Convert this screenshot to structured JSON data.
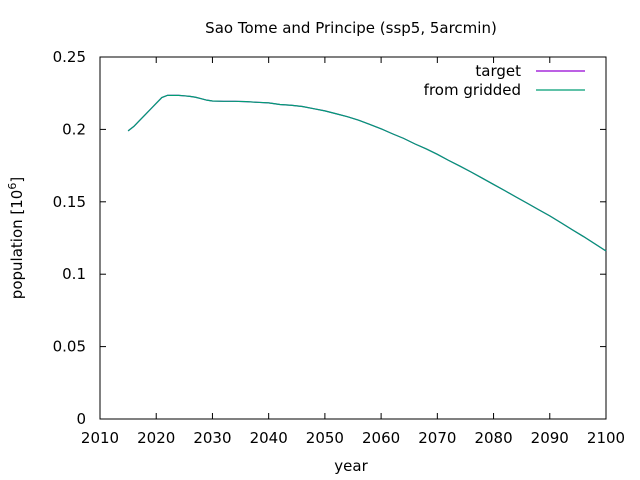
{
  "chart_data": {
    "type": "line",
    "title": "Sao Tome and Principe (ssp5, 5arcmin)",
    "xlabel": "year",
    "ylabel_base": "population [10",
    "ylabel_exp": "6",
    "ylabel_close": "]",
    "xlim": [
      2010,
      2100
    ],
    "ylim": [
      0,
      0.25
    ],
    "xticks": [
      "2010",
      "2020",
      "2030",
      "2040",
      "2050",
      "2060",
      "2070",
      "2080",
      "2090",
      "2100"
    ],
    "yticks": [
      "0",
      "0.05",
      "0.1",
      "0.15",
      "0.2",
      "0.25"
    ],
    "grid": false,
    "legend_position": "top-right",
    "series": [
      {
        "name": "target",
        "color": "#9400d3",
        "x": [
          2015,
          2016,
          2017,
          2018,
          2019,
          2020,
          2021,
          2022,
          2023,
          2024,
          2025,
          2026,
          2027,
          2028,
          2029,
          2030,
          2032,
          2034,
          2036,
          2038,
          2040,
          2042,
          2044,
          2046,
          2048,
          2050,
          2052,
          2054,
          2056,
          2058,
          2060,
          2062,
          2064,
          2066,
          2068,
          2070,
          2072,
          2074,
          2076,
          2078,
          2080,
          2082,
          2084,
          2086,
          2088,
          2090,
          2092,
          2094,
          2096,
          2098,
          2100
        ],
        "y": [
          0.199,
          0.202,
          0.206,
          0.21,
          0.214,
          0.218,
          0.222,
          0.2235,
          0.2235,
          0.2235,
          0.2232,
          0.2228,
          0.2222,
          0.2212,
          0.2202,
          0.2196,
          0.2194,
          0.2194,
          0.2192,
          0.2187,
          0.2183,
          0.2172,
          0.2167,
          0.2158,
          0.2143,
          0.2128,
          0.2108,
          0.2088,
          0.2064,
          0.2034,
          0.2004,
          0.197,
          0.1938,
          0.19,
          0.1866,
          0.1828,
          0.1786,
          0.1747,
          0.1706,
          0.1663,
          0.162,
          0.1577,
          0.1533,
          0.149,
          0.1446,
          0.1403,
          0.1355,
          0.1307,
          0.126,
          0.121,
          0.116
        ]
      },
      {
        "name": "from gridded",
        "color": "#009e73",
        "x": [
          2015,
          2016,
          2017,
          2018,
          2019,
          2020,
          2021,
          2022,
          2023,
          2024,
          2025,
          2026,
          2027,
          2028,
          2029,
          2030,
          2032,
          2034,
          2036,
          2038,
          2040,
          2042,
          2044,
          2046,
          2048,
          2050,
          2052,
          2054,
          2056,
          2058,
          2060,
          2062,
          2064,
          2066,
          2068,
          2070,
          2072,
          2074,
          2076,
          2078,
          2080,
          2082,
          2084,
          2086,
          2088,
          2090,
          2092,
          2094,
          2096,
          2098,
          2100
        ],
        "y": [
          0.199,
          0.202,
          0.206,
          0.21,
          0.214,
          0.218,
          0.222,
          0.2235,
          0.2235,
          0.2235,
          0.2232,
          0.2228,
          0.2222,
          0.2212,
          0.2202,
          0.2196,
          0.2194,
          0.2194,
          0.2192,
          0.2187,
          0.2183,
          0.2172,
          0.2167,
          0.2158,
          0.2143,
          0.2128,
          0.2108,
          0.2088,
          0.2064,
          0.2034,
          0.2004,
          0.197,
          0.1938,
          0.19,
          0.1866,
          0.1828,
          0.1786,
          0.1747,
          0.1706,
          0.1663,
          0.162,
          0.1577,
          0.1533,
          0.149,
          0.1446,
          0.1403,
          0.1355,
          0.1307,
          0.126,
          0.121,
          0.116
        ]
      }
    ]
  }
}
